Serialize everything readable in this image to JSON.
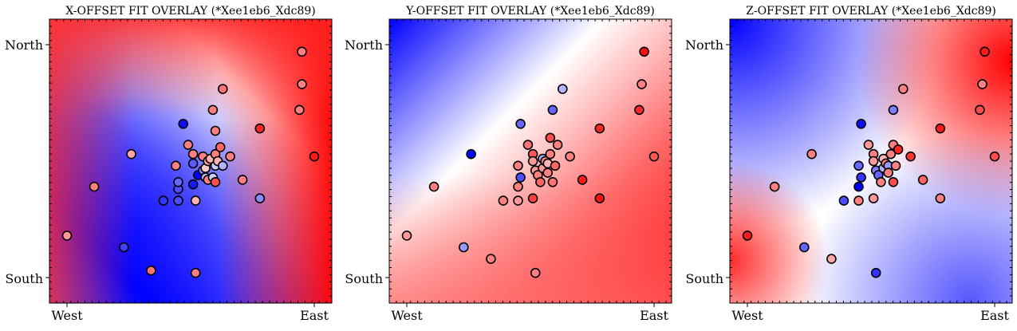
{
  "chart_data": [
    {
      "type": "scatter",
      "title": "X-OFFSET FIT OVERLAY (*Xee1eb6_Xdc89)",
      "x_tick_labels": [
        "West",
        "East"
      ],
      "y_tick_labels": [
        "North",
        "South"
      ],
      "background": "diverging bwr fit surface",
      "colormap": [
        "#0000ff",
        "#ffffff",
        "#ff0000"
      ],
      "points": [
        {
          "x": 0.0,
          "y": 0.18,
          "v": 0.4
        },
        {
          "x": 0.11,
          "y": 0.39,
          "v": 0.5
        },
        {
          "x": 0.23,
          "y": 0.13,
          "v": -0.75
        },
        {
          "x": 0.26,
          "y": 0.53,
          "v": 0.35
        },
        {
          "x": 0.34,
          "y": 0.03,
          "v": 0.55
        },
        {
          "x": 0.39,
          "y": 0.33,
          "v": -0.8
        },
        {
          "x": 0.45,
          "y": 0.33,
          "v": -0.7
        },
        {
          "x": 0.45,
          "y": 0.38,
          "v": -0.7
        },
        {
          "x": 0.45,
          "y": 0.41,
          "v": -0.6
        },
        {
          "x": 0.44,
          "y": 0.48,
          "v": 0.5
        },
        {
          "x": 0.47,
          "y": 0.66,
          "v": -0.95
        },
        {
          "x": 0.49,
          "y": 0.57,
          "v": 0.5
        },
        {
          "x": 0.51,
          "y": 0.53,
          "v": 0.5
        },
        {
          "x": 0.51,
          "y": 0.49,
          "v": -0.65
        },
        {
          "x": 0.51,
          "y": 0.4,
          "v": -0.9
        },
        {
          "x": 0.52,
          "y": 0.33,
          "v": 0.3
        },
        {
          "x": 0.52,
          "y": 0.02,
          "v": 0.5
        },
        {
          "x": 0.53,
          "y": 0.44,
          "v": -1.0
        },
        {
          "x": 0.55,
          "y": 0.46,
          "v": -0.5
        },
        {
          "x": 0.55,
          "y": 0.52,
          "v": 0.5
        },
        {
          "x": 0.56,
          "y": 0.43,
          "v": -0.3
        },
        {
          "x": 0.56,
          "y": 0.47,
          "v": 0.2
        },
        {
          "x": 0.57,
          "y": 0.42,
          "v": 0.5
        },
        {
          "x": 0.57,
          "y": 0.5,
          "v": 0.4
        },
        {
          "x": 0.58,
          "y": 0.51,
          "v": 0.3
        },
        {
          "x": 0.59,
          "y": 0.43,
          "v": -0.2
        },
        {
          "x": 0.59,
          "y": 0.72,
          "v": 0.5
        },
        {
          "x": 0.6,
          "y": 0.48,
          "v": -0.2
        },
        {
          "x": 0.6,
          "y": 0.53,
          "v": 0.5
        },
        {
          "x": 0.6,
          "y": 0.63,
          "v": 0.5
        },
        {
          "x": 0.6,
          "y": 0.41,
          "v": 0.7
        },
        {
          "x": 0.61,
          "y": 0.5,
          "v": 0.3
        },
        {
          "x": 0.62,
          "y": 0.56,
          "v": 0.6
        },
        {
          "x": 0.63,
          "y": 0.48,
          "v": -0.3
        },
        {
          "x": 0.63,
          "y": 0.81,
          "v": 0.55
        },
        {
          "x": 0.66,
          "y": 0.52,
          "v": 0.5
        },
        {
          "x": 0.71,
          "y": 0.42,
          "v": 0.5
        },
        {
          "x": 0.78,
          "y": 0.34,
          "v": -0.45
        },
        {
          "x": 0.78,
          "y": 0.64,
          "v": 0.85
        },
        {
          "x": 0.94,
          "y": 0.72,
          "v": 0.5
        },
        {
          "x": 0.95,
          "y": 0.83,
          "v": 0.5
        },
        {
          "x": 0.95,
          "y": 0.97,
          "v": 0.5
        },
        {
          "x": 1.0,
          "y": 0.52,
          "v": 0.9
        }
      ]
    },
    {
      "type": "scatter",
      "title": "Y-OFFSET FIT OVERLAY (*Xee1eb6_Xdc89)",
      "x_tick_labels": [
        "West",
        "East"
      ],
      "y_tick_labels": [
        "North",
        "South"
      ],
      "background": "diverging bwr fit surface",
      "colormap": [
        "#0000ff",
        "#ffffff",
        "#ff0000"
      ],
      "points": [
        {
          "x": 0.0,
          "y": 0.18,
          "v": 0.4
        },
        {
          "x": 0.11,
          "y": 0.39,
          "v": 0.5
        },
        {
          "x": 0.26,
          "y": 0.53,
          "v": -1.0
        },
        {
          "x": 0.23,
          "y": 0.13,
          "v": -0.4
        },
        {
          "x": 0.34,
          "y": 0.08,
          "v": 0.5
        },
        {
          "x": 0.39,
          "y": 0.33,
          "v": 0.5
        },
        {
          "x": 0.45,
          "y": 0.33,
          "v": 0.4
        },
        {
          "x": 0.45,
          "y": 0.39,
          "v": 0.5
        },
        {
          "x": 0.46,
          "y": 0.43,
          "v": -0.7
        },
        {
          "x": 0.45,
          "y": 0.48,
          "v": 0.5
        },
        {
          "x": 0.46,
          "y": 0.66,
          "v": -0.6
        },
        {
          "x": 0.49,
          "y": 0.57,
          "v": 0.55
        },
        {
          "x": 0.51,
          "y": 0.53,
          "v": 0.65
        },
        {
          "x": 0.51,
          "y": 0.34,
          "v": 0.75
        },
        {
          "x": 0.52,
          "y": 0.02,
          "v": 0.5
        },
        {
          "x": 0.51,
          "y": 0.5,
          "v": 0.4
        },
        {
          "x": 0.52,
          "y": 0.46,
          "v": 0.4
        },
        {
          "x": 0.53,
          "y": 0.44,
          "v": 0.5
        },
        {
          "x": 0.54,
          "y": 0.41,
          "v": 0.6
        },
        {
          "x": 0.55,
          "y": 0.47,
          "v": 0.4
        },
        {
          "x": 0.55,
          "y": 0.51,
          "v": -0.3
        },
        {
          "x": 0.56,
          "y": 0.5,
          "v": 0.5
        },
        {
          "x": 0.57,
          "y": 0.49,
          "v": 0.3
        },
        {
          "x": 0.57,
          "y": 0.45,
          "v": 0.5
        },
        {
          "x": 0.58,
          "y": 0.53,
          "v": 0.5
        },
        {
          "x": 0.59,
          "y": 0.41,
          "v": 0.55
        },
        {
          "x": 0.58,
          "y": 0.6,
          "v": 0.7
        },
        {
          "x": 0.59,
          "y": 0.72,
          "v": -0.6
        },
        {
          "x": 0.6,
          "y": 0.48,
          "v": 0.6
        },
        {
          "x": 0.61,
          "y": 0.57,
          "v": 0.5
        },
        {
          "x": 0.63,
          "y": 0.81,
          "v": -0.3
        },
        {
          "x": 0.66,
          "y": 0.52,
          "v": 0.5
        },
        {
          "x": 0.71,
          "y": 0.42,
          "v": 0.9
        },
        {
          "x": 0.78,
          "y": 0.34,
          "v": 0.95
        },
        {
          "x": 0.78,
          "y": 0.64,
          "v": 0.85
        },
        {
          "x": 0.94,
          "y": 0.72,
          "v": 0.85
        },
        {
          "x": 0.95,
          "y": 0.83,
          "v": 0.5
        },
        {
          "x": 0.96,
          "y": 0.97,
          "v": 0.95
        },
        {
          "x": 1.0,
          "y": 0.52,
          "v": 0.65
        }
      ]
    },
    {
      "type": "scatter",
      "title": "Z-OFFSET FIT OVERLAY (*Xee1eb6_Xdc89)",
      "x_tick_labels": [
        "West",
        "East"
      ],
      "y_tick_labels": [
        "North",
        "South"
      ],
      "background": "diverging bwr fit surface",
      "colormap": [
        "#0000ff",
        "#ffffff",
        "#ff0000"
      ],
      "points": [
        {
          "x": 0.0,
          "y": 0.18,
          "v": 0.9
        },
        {
          "x": 0.11,
          "y": 0.39,
          "v": 0.5
        },
        {
          "x": 0.26,
          "y": 0.53,
          "v": 0.5
        },
        {
          "x": 0.23,
          "y": 0.13,
          "v": -0.6
        },
        {
          "x": 0.34,
          "y": 0.08,
          "v": 0.35
        },
        {
          "x": 0.39,
          "y": 0.33,
          "v": -0.7
        },
        {
          "x": 0.45,
          "y": 0.33,
          "v": 0.5
        },
        {
          "x": 0.45,
          "y": 0.39,
          "v": -1.0
        },
        {
          "x": 0.46,
          "y": 0.43,
          "v": -0.8
        },
        {
          "x": 0.45,
          "y": 0.48,
          "v": -0.6
        },
        {
          "x": 0.46,
          "y": 0.66,
          "v": -0.95
        },
        {
          "x": 0.49,
          "y": 0.57,
          "v": 0.4
        },
        {
          "x": 0.51,
          "y": 0.53,
          "v": 0.5
        },
        {
          "x": 0.51,
          "y": 0.34,
          "v": 0.4
        },
        {
          "x": 0.52,
          "y": 0.02,
          "v": -0.8
        },
        {
          "x": 0.51,
          "y": 0.5,
          "v": 0.4
        },
        {
          "x": 0.52,
          "y": 0.46,
          "v": -0.5
        },
        {
          "x": 0.53,
          "y": 0.44,
          "v": -0.6
        },
        {
          "x": 0.54,
          "y": 0.41,
          "v": 0.5
        },
        {
          "x": 0.55,
          "y": 0.47,
          "v": -0.3
        },
        {
          "x": 0.55,
          "y": 0.51,
          "v": 0.3
        },
        {
          "x": 0.56,
          "y": 0.49,
          "v": 0.5
        },
        {
          "x": 0.57,
          "y": 0.48,
          "v": -0.4
        },
        {
          "x": 0.57,
          "y": 0.45,
          "v": 0.5
        },
        {
          "x": 0.58,
          "y": 0.53,
          "v": 0.5
        },
        {
          "x": 0.59,
          "y": 0.41,
          "v": 0.7
        },
        {
          "x": 0.59,
          "y": 0.57,
          "v": 0.5
        },
        {
          "x": 0.59,
          "y": 0.72,
          "v": -0.5
        },
        {
          "x": 0.6,
          "y": 0.48,
          "v": 0.5
        },
        {
          "x": 0.61,
          "y": 0.55,
          "v": 0.85
        },
        {
          "x": 0.63,
          "y": 0.81,
          "v": 0.5
        },
        {
          "x": 0.66,
          "y": 0.52,
          "v": 0.8
        },
        {
          "x": 0.71,
          "y": 0.42,
          "v": 0.6
        },
        {
          "x": 0.78,
          "y": 0.34,
          "v": 0.5
        },
        {
          "x": 0.78,
          "y": 0.64,
          "v": 0.9
        },
        {
          "x": 0.94,
          "y": 0.72,
          "v": 0.7
        },
        {
          "x": 0.95,
          "y": 0.83,
          "v": 0.5
        },
        {
          "x": 0.96,
          "y": 0.97,
          "v": 0.9
        },
        {
          "x": 1.0,
          "y": 0.52,
          "v": 0.7
        }
      ]
    }
  ]
}
